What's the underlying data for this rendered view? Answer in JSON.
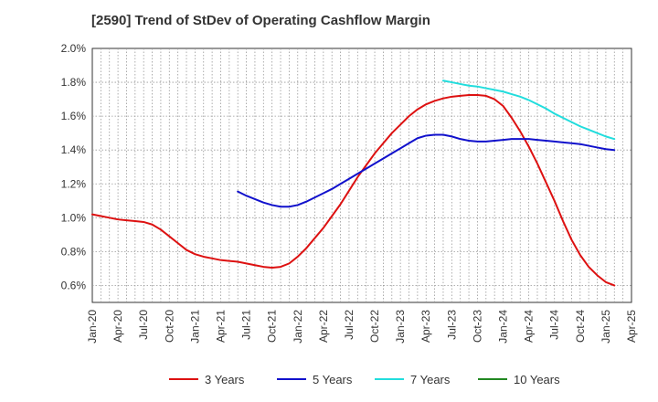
{
  "title": "[2590]  Trend of StDev of Operating Cashflow Margin",
  "chart_data": {
    "type": "line",
    "title": "[2590]  Trend of StDev of Operating Cashflow Margin",
    "xlabel": "",
    "ylabel": "",
    "ylim": [
      0.5,
      2.0
    ],
    "y_ticks": [
      "0.6%",
      "0.8%",
      "1.0%",
      "1.2%",
      "1.4%",
      "1.6%",
      "1.8%",
      "2.0%"
    ],
    "x_ticks": [
      "Jan-20",
      "Apr-20",
      "Jul-20",
      "Oct-20",
      "Jan-21",
      "Apr-21",
      "Jul-21",
      "Oct-21",
      "Jan-22",
      "Apr-22",
      "Jul-22",
      "Oct-22",
      "Jan-23",
      "Apr-23",
      "Jul-23",
      "Oct-23",
      "Jan-24",
      "Apr-24",
      "Jul-24",
      "Oct-24",
      "Jan-25",
      "Apr-25"
    ],
    "grid": true,
    "legend_position": "bottom",
    "series": [
      {
        "name": "3 Years",
        "color": "#dd1111",
        "points": [
          [
            "Jan-20",
            1.02
          ],
          [
            "Feb-20",
            1.01
          ],
          [
            "Mar-20",
            1.0
          ],
          [
            "Apr-20",
            0.99
          ],
          [
            "May-20",
            0.985
          ],
          [
            "Jun-20",
            0.98
          ],
          [
            "Jul-20",
            0.975
          ],
          [
            "Aug-20",
            0.96
          ],
          [
            "Sep-20",
            0.93
          ],
          [
            "Oct-20",
            0.89
          ],
          [
            "Nov-20",
            0.85
          ],
          [
            "Dec-20",
            0.81
          ],
          [
            "Jan-21",
            0.785
          ],
          [
            "Feb-21",
            0.77
          ],
          [
            "Mar-21",
            0.76
          ],
          [
            "Apr-21",
            0.75
          ],
          [
            "May-21",
            0.745
          ],
          [
            "Jun-21",
            0.74
          ],
          [
            "Jul-21",
            0.73
          ],
          [
            "Aug-21",
            0.72
          ],
          [
            "Sep-21",
            0.71
          ],
          [
            "Oct-21",
            0.705
          ],
          [
            "Nov-21",
            0.71
          ],
          [
            "Dec-21",
            0.73
          ],
          [
            "Jan-22",
            0.77
          ],
          [
            "Feb-22",
            0.82
          ],
          [
            "Mar-22",
            0.88
          ],
          [
            "Apr-22",
            0.94
          ],
          [
            "May-22",
            1.01
          ],
          [
            "Jun-22",
            1.08
          ],
          [
            "Jul-22",
            1.16
          ],
          [
            "Aug-22",
            1.24
          ],
          [
            "Sep-22",
            1.31
          ],
          [
            "Oct-22",
            1.38
          ],
          [
            "Nov-22",
            1.44
          ],
          [
            "Dec-22",
            1.5
          ],
          [
            "Jan-23",
            1.55
          ],
          [
            "Feb-23",
            1.6
          ],
          [
            "Mar-23",
            1.64
          ],
          [
            "Apr-23",
            1.67
          ],
          [
            "May-23",
            1.69
          ],
          [
            "Jun-23",
            1.705
          ],
          [
            "Jul-23",
            1.715
          ],
          [
            "Aug-23",
            1.72
          ],
          [
            "Sep-23",
            1.725
          ],
          [
            "Oct-23",
            1.725
          ],
          [
            "Nov-23",
            1.72
          ],
          [
            "Dec-23",
            1.7
          ],
          [
            "Jan-24",
            1.66
          ],
          [
            "Feb-24",
            1.59
          ],
          [
            "Mar-24",
            1.51
          ],
          [
            "Apr-24",
            1.42
          ],
          [
            "May-24",
            1.32
          ],
          [
            "Jun-24",
            1.21
          ],
          [
            "Jul-24",
            1.1
          ],
          [
            "Aug-24",
            0.98
          ],
          [
            "Sep-24",
            0.87
          ],
          [
            "Oct-24",
            0.78
          ],
          [
            "Nov-24",
            0.71
          ],
          [
            "Dec-24",
            0.66
          ],
          [
            "Jan-25",
            0.62
          ],
          [
            "Feb-25",
            0.6
          ]
        ]
      },
      {
        "name": "5 Years",
        "color": "#1111cc",
        "points": [
          [
            "Jun-21",
            1.155
          ],
          [
            "Jul-21",
            1.13
          ],
          [
            "Aug-21",
            1.11
          ],
          [
            "Sep-21",
            1.09
          ],
          [
            "Oct-21",
            1.075
          ],
          [
            "Nov-21",
            1.065
          ],
          [
            "Dec-21",
            1.065
          ],
          [
            "Jan-22",
            1.075
          ],
          [
            "Feb-22",
            1.095
          ],
          [
            "Mar-22",
            1.12
          ],
          [
            "Apr-22",
            1.145
          ],
          [
            "May-22",
            1.17
          ],
          [
            "Jun-22",
            1.2
          ],
          [
            "Jul-22",
            1.23
          ],
          [
            "Aug-22",
            1.26
          ],
          [
            "Sep-22",
            1.29
          ],
          [
            "Oct-22",
            1.32
          ],
          [
            "Nov-22",
            1.35
          ],
          [
            "Dec-22",
            1.38
          ],
          [
            "Jan-23",
            1.41
          ],
          [
            "Feb-23",
            1.44
          ],
          [
            "Mar-23",
            1.47
          ],
          [
            "Apr-23",
            1.485
          ],
          [
            "May-23",
            1.49
          ],
          [
            "Jun-23",
            1.49
          ],
          [
            "Jul-23",
            1.48
          ],
          [
            "Aug-23",
            1.465
          ],
          [
            "Sep-23",
            1.455
          ],
          [
            "Oct-23",
            1.45
          ],
          [
            "Nov-23",
            1.45
          ],
          [
            "Dec-23",
            1.455
          ],
          [
            "Jan-24",
            1.46
          ],
          [
            "Feb-24",
            1.465
          ],
          [
            "Mar-24",
            1.465
          ],
          [
            "Apr-24",
            1.465
          ],
          [
            "May-24",
            1.46
          ],
          [
            "Jun-24",
            1.455
          ],
          [
            "Jul-24",
            1.45
          ],
          [
            "Aug-24",
            1.445
          ],
          [
            "Sep-24",
            1.44
          ],
          [
            "Oct-24",
            1.435
          ],
          [
            "Nov-24",
            1.425
          ],
          [
            "Dec-24",
            1.415
          ],
          [
            "Jan-25",
            1.405
          ],
          [
            "Feb-25",
            1.4
          ]
        ]
      },
      {
        "name": "7 Years",
        "color": "#22dddd",
        "points": [
          [
            "Jun-23",
            1.81
          ],
          [
            "Jul-23",
            1.8
          ],
          [
            "Aug-23",
            1.79
          ],
          [
            "Sep-23",
            1.78
          ],
          [
            "Oct-23",
            1.775
          ],
          [
            "Nov-23",
            1.765
          ],
          [
            "Dec-23",
            1.755
          ],
          [
            "Jan-24",
            1.745
          ],
          [
            "Feb-24",
            1.73
          ],
          [
            "Mar-24",
            1.715
          ],
          [
            "Apr-24",
            1.695
          ],
          [
            "May-24",
            1.67
          ],
          [
            "Jun-24",
            1.645
          ],
          [
            "Jul-24",
            1.615
          ],
          [
            "Aug-24",
            1.59
          ],
          [
            "Sep-24",
            1.565
          ],
          [
            "Oct-24",
            1.54
          ],
          [
            "Nov-24",
            1.52
          ],
          [
            "Dec-24",
            1.5
          ],
          [
            "Jan-25",
            1.48
          ],
          [
            "Feb-25",
            1.465
          ]
        ]
      },
      {
        "name": "10 Years",
        "color": "#228822",
        "points": []
      }
    ]
  }
}
